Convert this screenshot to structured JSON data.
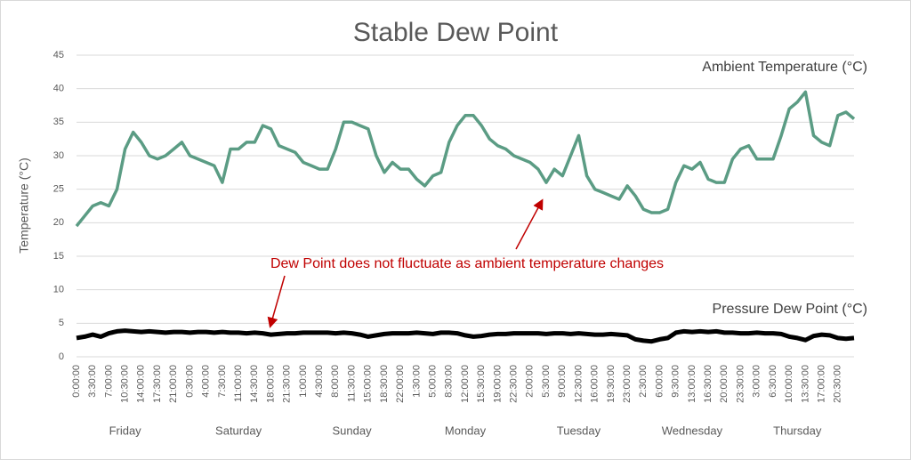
{
  "chart_data": {
    "type": "line",
    "title": "Stable Dew Point",
    "y_label": "Temperature (°C)",
    "annotation": "Dew Point does not fluctuate as ambient temperature changes",
    "annotation_color": "#c00000",
    "categories": [
      "0:00:00",
      null,
      "3:30:00",
      null,
      "7:00:00",
      null,
      "10:30:00",
      null,
      "14:00:00",
      null,
      "17:30:00",
      null,
      "21:00:00",
      null,
      "0:30:00",
      null,
      "4:00:00",
      null,
      "7:30:00",
      null,
      "11:00:00",
      null,
      "14:30:00",
      null,
      "18:00:00",
      null,
      "21:30:00",
      null,
      "1:00:00",
      null,
      "4:30:00",
      null,
      "8:00:00",
      null,
      "11:30:00",
      null,
      "15:00:00",
      null,
      "18:30:00",
      null,
      "22:00:00",
      null,
      "1:30:00",
      null,
      "5:00:00",
      null,
      "8:30:00",
      null,
      "12:00:00",
      null,
      "15:30:00",
      null,
      "19:00:00",
      null,
      "22:30:00",
      null,
      "2:00:00",
      null,
      "5:30:00",
      null,
      "9:00:00",
      null,
      "12:30:00",
      null,
      "16:00:00",
      null,
      "19:30:00",
      null,
      "23:00:00",
      null,
      "2:30:00",
      null,
      "6:00:00",
      null,
      "9:30:00",
      null,
      "13:00:00",
      null,
      "16:30:00",
      null,
      "20:00:00",
      null,
      "23:30:00",
      null,
      "3:00:00",
      null,
      "6:30:00",
      null,
      "10:00:00",
      null,
      "13:30:00",
      null,
      "17:00:00",
      null,
      "20:30:00",
      null,
      null
    ],
    "days": [
      "Friday",
      "Saturday",
      "Sunday",
      "Monday",
      "Tuesday",
      "Wednesday",
      "Thursday"
    ],
    "series": [
      {
        "name": "Ambient Temperature (°C)",
        "color": "#5b9c84",
        "values": [
          19.5,
          21,
          22.5,
          23,
          22.5,
          25,
          31,
          33.5,
          32,
          30,
          29.5,
          30,
          31,
          32,
          30,
          29.5,
          29,
          28.5,
          26,
          31,
          31,
          32,
          32,
          34.5,
          34,
          31.5,
          31,
          30.5,
          29,
          28.5,
          28,
          28,
          31,
          35,
          35,
          34.5,
          34,
          30,
          27.5,
          29,
          28,
          28,
          26.5,
          25.5,
          27,
          27.5,
          32,
          34.5,
          36,
          36,
          34.5,
          32.5,
          31.5,
          31,
          30,
          29.5,
          29,
          28,
          26,
          28,
          27,
          30,
          33,
          27,
          25,
          24.5,
          24,
          23.5,
          25.5,
          24,
          22,
          21.5,
          21.5,
          22,
          26,
          28.5,
          28,
          29,
          26.5,
          26,
          26,
          29.5,
          31,
          31.5,
          29.5,
          29.5,
          29.5,
          33,
          37,
          38,
          39.5,
          33,
          32,
          31.5,
          36,
          36.5,
          35.5
        ]
      },
      {
        "name": "Pressure Dew Point (°C)",
        "color": "#000000",
        "values": [
          2.8,
          3,
          3.3,
          3,
          3.5,
          3.8,
          3.9,
          3.8,
          3.7,
          3.8,
          3.7,
          3.6,
          3.7,
          3.7,
          3.6,
          3.7,
          3.7,
          3.6,
          3.7,
          3.6,
          3.6,
          3.5,
          3.6,
          3.5,
          3.3,
          3.4,
          3.5,
          3.5,
          3.6,
          3.6,
          3.6,
          3.6,
          3.5,
          3.6,
          3.5,
          3.3,
          3,
          3.2,
          3.4,
          3.5,
          3.5,
          3.5,
          3.6,
          3.5,
          3.4,
          3.6,
          3.6,
          3.5,
          3.2,
          3,
          3.1,
          3.3,
          3.4,
          3.4,
          3.5,
          3.5,
          3.5,
          3.5,
          3.4,
          3.5,
          3.5,
          3.4,
          3.5,
          3.4,
          3.3,
          3.3,
          3.4,
          3.3,
          3.2,
          2.6,
          2.4,
          2.3,
          2.6,
          2.8,
          3.6,
          3.8,
          3.7,
          3.8,
          3.7,
          3.8,
          3.6,
          3.6,
          3.5,
          3.5,
          3.6,
          3.5,
          3.5,
          3.4,
          3,
          2.8,
          2.5,
          3.1,
          3.3,
          3.2,
          2.8,
          2.7,
          2.8
        ]
      }
    ],
    "ylim": [
      0,
      45
    ],
    "yticks": [
      0,
      5,
      10,
      15,
      20,
      25,
      30,
      35,
      40,
      45
    ],
    "grid": true
  }
}
